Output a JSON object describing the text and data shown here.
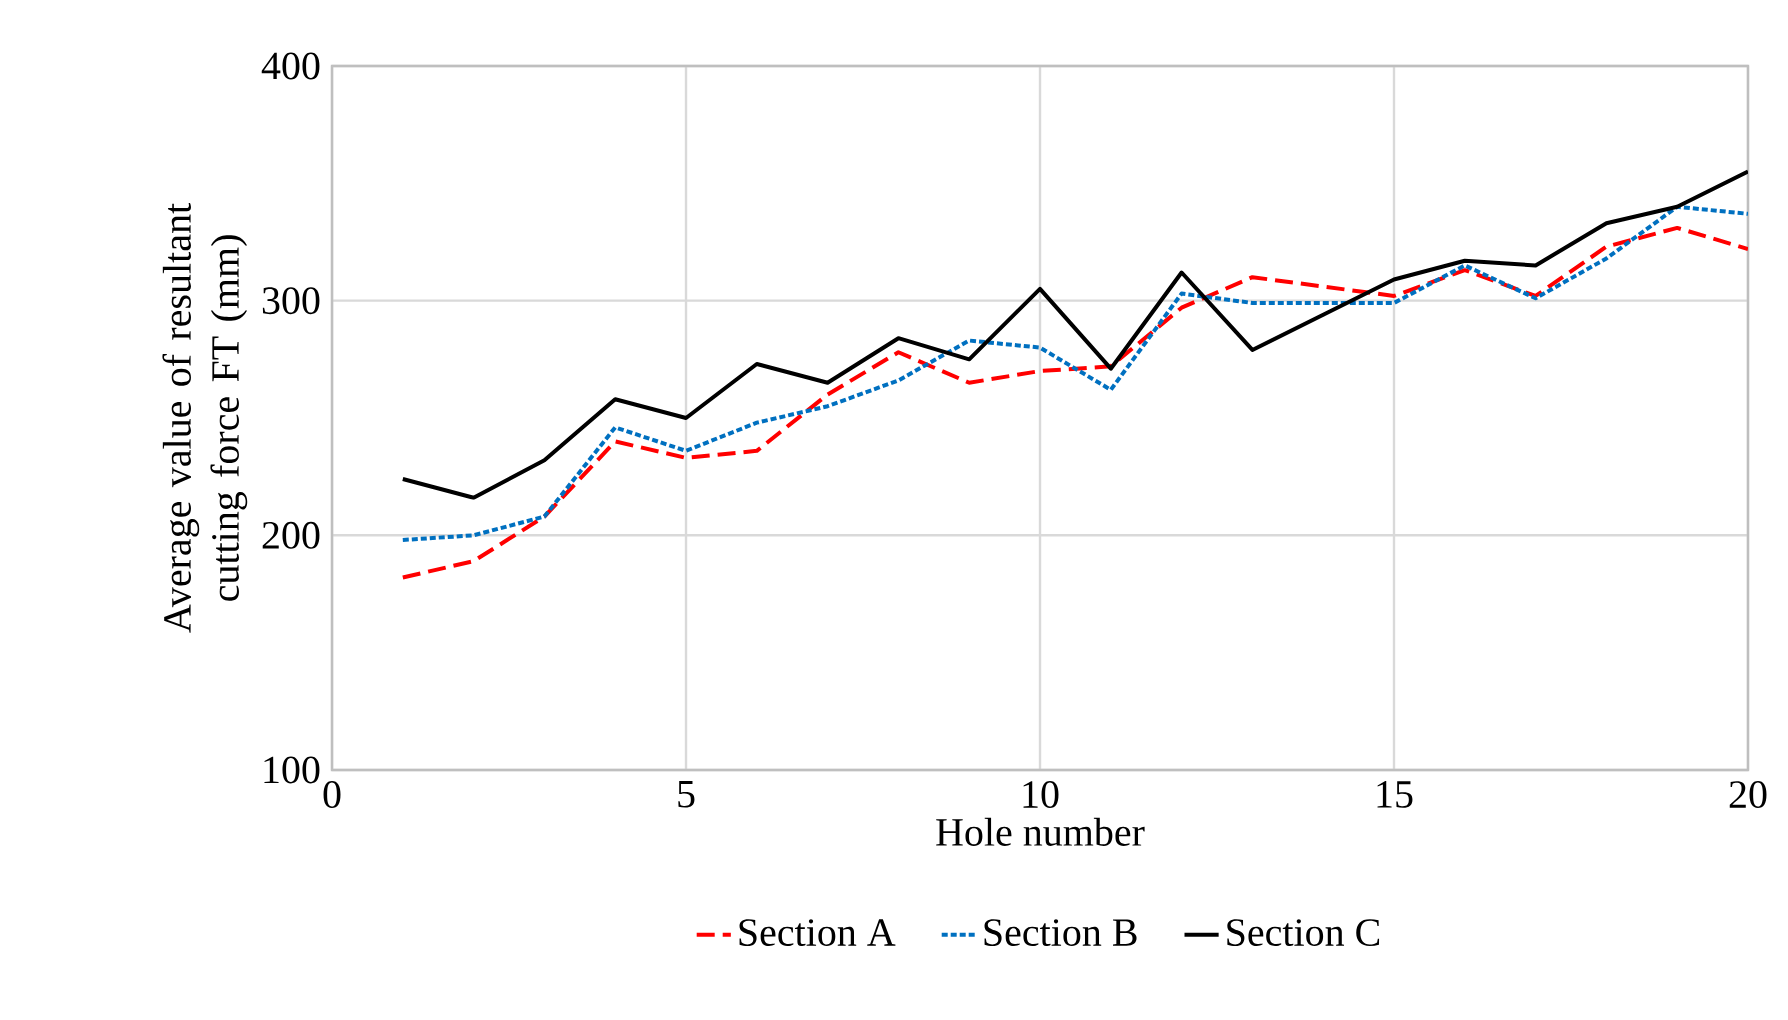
{
  "chart_data": {
    "type": "line",
    "xlabel": "Hole number",
    "ylabel": "Average value of resultant cutting force FT (mm)",
    "x": [
      1,
      2,
      3,
      4,
      5,
      6,
      7,
      8,
      9,
      10,
      11,
      12,
      13,
      14,
      15,
      16,
      17,
      18,
      19,
      20
    ],
    "series": [
      {
        "name": "Section A",
        "color": "#ff0000",
        "line_style": "dashed",
        "values": [
          182,
          189,
          208,
          240,
          233,
          236,
          260,
          278,
          265,
          270,
          272,
          297,
          310,
          306,
          302,
          313,
          302,
          323,
          331,
          322
        ]
      },
      {
        "name": "Section B",
        "color": "#0070c0",
        "line_style": "dotted",
        "values": [
          198,
          200,
          208,
          246,
          236,
          248,
          255,
          266,
          283,
          280,
          262,
          303,
          299,
          299,
          299,
          315,
          301,
          318,
          340,
          337
        ]
      },
      {
        "name": "Section C",
        "color": "#000000",
        "line_style": "solid",
        "values": [
          224,
          216,
          232,
          258,
          250,
          273,
          265,
          284,
          275,
          305,
          271,
          312,
          279,
          294,
          309,
          317,
          315,
          333,
          340,
          355
        ]
      }
    ],
    "xlim": [
      0,
      20
    ],
    "ylim": [
      100,
      400
    ],
    "xticks": [
      0,
      5,
      10,
      15,
      20
    ],
    "yticks": [
      100,
      200,
      300,
      400
    ],
    "grid": true,
    "legend": "bottom",
    "marker": "none"
  }
}
